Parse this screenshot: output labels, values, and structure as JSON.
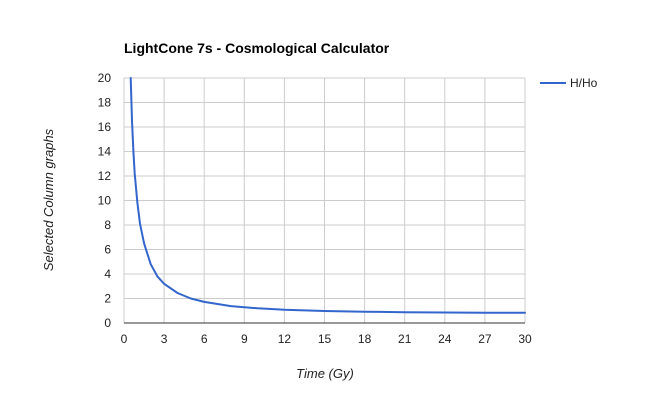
{
  "chart_data": {
    "type": "line",
    "title": "LightCone 7s - Cosmological Calculator",
    "xlabel": "Time (Gy)",
    "ylabel": "Selected Column graphs",
    "xlim": [
      0,
      30
    ],
    "ylim": [
      0,
      20
    ],
    "x_ticks": [
      "0",
      "3",
      "6",
      "9",
      "12",
      "15",
      "18",
      "21",
      "24",
      "27",
      "30"
    ],
    "y_ticks": [
      "0",
      "2",
      "4",
      "6",
      "8",
      "10",
      "12",
      "14",
      "16",
      "18",
      "20"
    ],
    "grid": true,
    "legend_position": "top-right",
    "series": [
      {
        "name": "H/Ho",
        "color": "#3366cc",
        "x": [
          0.5,
          0.6,
          0.7,
          0.8,
          1.0,
          1.2,
          1.5,
          2.0,
          2.5,
          3.0,
          4.0,
          5.0,
          6.0,
          8.0,
          10.0,
          12.0,
          15.0,
          18.0,
          21.0,
          24.0,
          27.0,
          30.0
        ],
        "y": [
          20.0,
          16.5,
          14.0,
          12.2,
          9.8,
          8.1,
          6.5,
          4.8,
          3.8,
          3.2,
          2.45,
          2.0,
          1.72,
          1.38,
          1.2,
          1.08,
          0.98,
          0.92,
          0.88,
          0.86,
          0.84,
          0.83
        ]
      }
    ]
  }
}
